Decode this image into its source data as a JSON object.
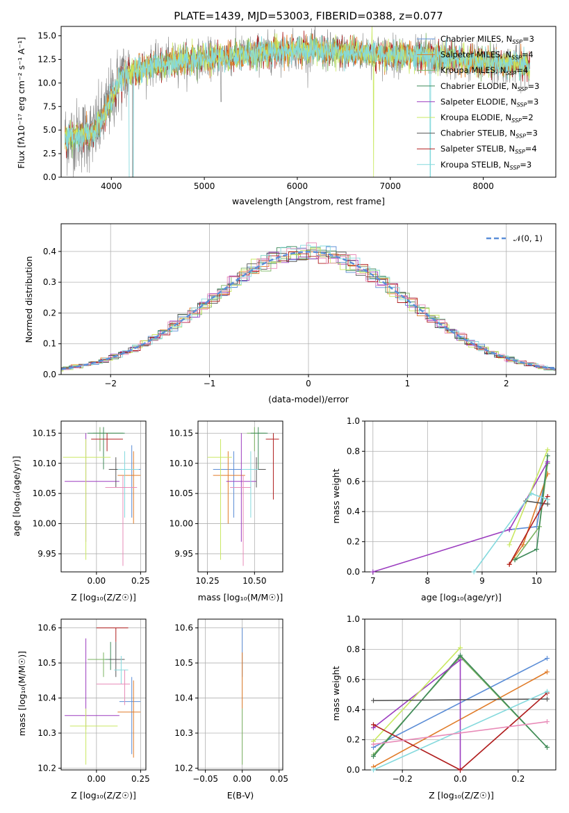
{
  "palette": {
    "series_colors": [
      "#5b8dd6",
      "#e07b28",
      "#7ab360",
      "#3f8a5a",
      "#9b3cbf",
      "#c9e860",
      "#555555",
      "#b01d1d",
      "#84d9dd"
    ],
    "extra_colors": [
      "#e88bb8",
      "#999999"
    ],
    "normal_curve": "#5a8ed8",
    "grid": "#b0b0b0"
  },
  "chart_data": [
    {
      "type": "line",
      "title": "PLATE=1439, MJD=53003, FIBERID=0388, z=0.077",
      "xlabel": "wavelength [Angstrom, rest frame]",
      "ylabel": "Flux [f$_\\lambda$10$^{-17}$ erg cm$^{-2}$ s$^{-1}$ A$^{-1}$]",
      "ylabel_display": "Flux [fλ10⁻¹⁷ erg cm⁻² s⁻¹ A⁻¹]",
      "xlim": [
        3460,
        8780
      ],
      "ylim": [
        0,
        16
      ],
      "xticks": [
        4000,
        5000,
        6000,
        7000,
        8000
      ],
      "xtick_labels": [
        "4000",
        "5000",
        "6000",
        "7000",
        "8000"
      ],
      "yticks": [
        0,
        2.5,
        5,
        7.5,
        10,
        12.5,
        15
      ],
      "ytick_labels": [
        "0.0",
        "2.5",
        "5.0",
        "7.5",
        "10.0",
        "12.5",
        "15.0"
      ],
      "grid": false,
      "legend_position": "top-right",
      "series": [
        {
          "name": "Chabrier MILES, N$_{SSP}$=3",
          "label": "Chabrier MILES, N",
          "sub": "SSP",
          "suffix": "=3"
        },
        {
          "name": "Salpeter MILES, N$_{SSP}$=4",
          "label": "Salpeter MILES, N",
          "sub": "SSP",
          "suffix": "=4"
        },
        {
          "name": "Kroupa MILES, N$_{SSP}$=4",
          "label": "Kroupa MILES, N",
          "sub": "SSP",
          "suffix": "=4"
        },
        {
          "name": "Chabrier ELODIE, N$_{SSP}$=3",
          "label": "Chabrier ELODIE, N",
          "sub": "SSP",
          "suffix": "=3"
        },
        {
          "name": "Salpeter ELODIE, N$_{SSP}$=3",
          "label": "Salpeter ELODIE, N",
          "sub": "SSP",
          "suffix": "=3"
        },
        {
          "name": "Kroupa ELODIE, N$_{SSP}$=2",
          "label": "Kroupa ELODIE, N",
          "sub": "SSP",
          "suffix": "=2"
        },
        {
          "name": "Chabrier STELIB, N$_{SSP}$=3",
          "label": "Chabrier STELIB, N",
          "sub": "SSP",
          "suffix": "=3"
        },
        {
          "name": "Salpeter STELIB, N$_{SSP}$=4",
          "label": "Salpeter STELIB, N",
          "sub": "SSP",
          "suffix": "=4"
        },
        {
          "name": "Kroupa STELIB, N$_{SSP}$=3",
          "label": "Kroupa STELIB, N",
          "sub": "SSP",
          "suffix": "=3"
        }
      ],
      "spectrum_shape": {
        "continuum": [
          [
            3500,
            4.2
          ],
          [
            3800,
            4.6
          ],
          [
            3900,
            6.0
          ],
          [
            4000,
            8.5
          ],
          [
            4100,
            10.5
          ],
          [
            4300,
            11.5
          ],
          [
            4500,
            12.0
          ],
          [
            4800,
            12.4
          ],
          [
            5000,
            12.6
          ],
          [
            5300,
            12.8
          ],
          [
            5600,
            13.2
          ],
          [
            6000,
            13.5
          ],
          [
            6500,
            13.3
          ],
          [
            7000,
            13.0
          ],
          [
            7400,
            12.8
          ],
          [
            7800,
            12.4
          ],
          [
            8200,
            12.0
          ],
          [
            8500,
            11.8
          ]
        ],
        "noise_data": 2.2,
        "noise_model": 0.7
      }
    },
    {
      "type": "line",
      "xlabel": "(data-model)/error",
      "ylabel": "Normed distribution",
      "xlim": [
        -2.5,
        2.5
      ],
      "ylim": [
        0,
        0.49
      ],
      "xticks": [
        -2,
        -1,
        0,
        1,
        2
      ],
      "xtick_labels": [
        "−2",
        "−1",
        "0",
        "1",
        "2"
      ],
      "yticks": [
        0,
        0.1,
        0.2,
        0.3,
        0.4
      ],
      "ytick_labels": [
        "0.0",
        "0.1",
        "0.2",
        "0.3",
        "0.4"
      ],
      "grid": true,
      "legend_position": "top-right",
      "normal_label": "𝒩(0, 1)",
      "bin_width": 0.1,
      "notes": "step histograms of residuals for each of 9 models approximately follow the standard normal"
    },
    {
      "type": "scatter",
      "xlabel": "Z [log₁₀(Z/Z☉)]",
      "ylabel": "age  [log₁₀(age/yr)]",
      "xlim": [
        -0.2,
        0.28
      ],
      "ylim": [
        9.92,
        10.17
      ],
      "xticks": [
        0.0,
        0.25
      ],
      "xtick_labels": [
        "0.00",
        "0.25"
      ],
      "yticks": [
        9.95,
        10.0,
        10.05,
        10.1,
        10.15
      ],
      "ytick_labels": [
        "9.95",
        "10.00",
        "10.05",
        "10.10",
        "10.15"
      ],
      "grid": true,
      "points": [
        {
          "x": 0.2,
          "y": 10.09,
          "xe": [
            0.16,
            0.25
          ],
          "ye": [
            10.01,
            10.13
          ]
        },
        {
          "x": 0.21,
          "y": 10.08,
          "xe": [
            0.12,
            0.25
          ],
          "ye": [
            10.0,
            10.12
          ]
        },
        {
          "x": 0.02,
          "y": 10.15,
          "xe": [
            -0.02,
            0.15
          ],
          "ye": [
            10.12,
            10.16
          ]
        },
        {
          "x": 0.04,
          "y": 10.15,
          "xe": [
            -0.05,
            0.16
          ],
          "ye": [
            10.09,
            10.16
          ]
        },
        {
          "x": -0.06,
          "y": 10.07,
          "xe": [
            -0.18,
            0.13
          ],
          "ye": [
            9.97,
            10.15
          ]
        },
        {
          "x": -0.06,
          "y": 10.11,
          "xe": [
            -0.19,
            0.08
          ],
          "ye": [
            9.94,
            10.14
          ]
        },
        {
          "x": 0.11,
          "y": 10.09,
          "xe": [
            0.07,
            0.16
          ],
          "ye": [
            10.06,
            10.11
          ]
        },
        {
          "x": 0.06,
          "y": 10.14,
          "xe": [
            -0.03,
            0.15
          ],
          "ye": [
            10.12,
            10.15
          ]
        },
        {
          "x": 0.16,
          "y": 10.09,
          "xe": [
            0.12,
            0.24
          ],
          "ye": [
            10.01,
            10.12
          ]
        },
        {
          "x": 0.15,
          "y": 10.06,
          "xe": [
            0.05,
            0.23
          ],
          "ye": [
            9.93,
            10.08
          ]
        }
      ]
    },
    {
      "type": "scatter",
      "xlabel": "mass [log₁₀(M/M☉)]",
      "ylabel": "",
      "xlim": [
        10.2,
        10.65
      ],
      "ylim": [
        9.92,
        10.17
      ],
      "xticks": [
        10.25,
        10.5
      ],
      "xtick_labels": [
        "10.25",
        "10.50"
      ],
      "yticks": [
        9.95,
        10.0,
        10.05,
        10.1,
        10.15
      ],
      "ytick_labels": [
        "9.95",
        "10.00",
        "10.05",
        "10.10",
        "10.15"
      ],
      "grid": true,
      "points": [
        {
          "x": 10.39,
          "y": 10.09,
          "xe": [
            10.28,
            10.46
          ],
          "ye": [
            10.01,
            10.12
          ]
        },
        {
          "x": 10.36,
          "y": 10.08,
          "xe": [
            10.28,
            10.45
          ],
          "ye": [
            10.0,
            10.12
          ]
        },
        {
          "x": 10.5,
          "y": 10.15,
          "xe": [
            10.46,
            10.56
          ],
          "ye": [
            10.12,
            10.16
          ]
        },
        {
          "x": 10.52,
          "y": 10.15,
          "xe": [
            10.48,
            10.57
          ],
          "ye": [
            10.09,
            10.16
          ]
        },
        {
          "x": 10.43,
          "y": 10.07,
          "xe": [
            10.35,
            10.51
          ],
          "ye": [
            9.97,
            10.15
          ]
        },
        {
          "x": 10.32,
          "y": 10.11,
          "xe": [
            10.25,
            10.38
          ],
          "ye": [
            9.94,
            10.14
          ]
        },
        {
          "x": 10.51,
          "y": 10.09,
          "xe": [
            10.46,
            10.56
          ],
          "ye": [
            10.06,
            10.11
          ]
        },
        {
          "x": 10.6,
          "y": 10.14,
          "xe": [
            10.56,
            10.63
          ],
          "ye": [
            10.04,
            10.15
          ]
        },
        {
          "x": 10.48,
          "y": 10.09,
          "xe": [
            10.43,
            10.52
          ],
          "ye": [
            10.01,
            10.12
          ]
        },
        {
          "x": 10.44,
          "y": 10.06,
          "xe": [
            10.37,
            10.48
          ],
          "ye": [
            9.93,
            10.08
          ]
        }
      ]
    },
    {
      "type": "line",
      "xlabel": "age  [log₁₀(age/yr)]",
      "ylabel": "mass weight",
      "xlim": [
        6.85,
        10.35
      ],
      "ylim": [
        0,
        1.0
      ],
      "xticks": [
        7,
        8,
        9,
        10
      ],
      "xtick_labels": [
        "7",
        "8",
        "9",
        "10"
      ],
      "yticks": [
        0,
        0.2,
        0.4,
        0.6,
        0.8,
        1.0
      ],
      "ytick_labels": [
        "0.0",
        "0.2",
        "0.4",
        "0.6",
        "0.8",
        "1.0"
      ],
      "grid": true,
      "series": [
        {
          "values": [
            [
              9.5,
              0.28
            ],
            [
              10.0,
              0.3
            ],
            [
              10.2,
              0.72
            ]
          ]
        },
        {
          "values": [
            [
              9.5,
              0.05
            ],
            [
              9.75,
              0.18
            ],
            [
              10.2,
              0.65
            ]
          ]
        },
        {
          "values": [
            [
              9.6,
              0.08
            ],
            [
              10.05,
              0.3
            ],
            [
              10.2,
              0.72
            ]
          ]
        },
        {
          "values": [
            [
              9.6,
              0.08
            ],
            [
              10.0,
              0.15
            ],
            [
              10.2,
              0.77
            ]
          ]
        },
        {
          "values": [
            [
              7.0,
              0.0
            ],
            [
              9.5,
              0.28
            ],
            [
              10.2,
              0.73
            ]
          ]
        },
        {
          "values": [
            [
              9.5,
              0.18
            ],
            [
              10.2,
              0.81
            ]
          ]
        },
        {
          "values": [
            [
              9.8,
              0.47
            ],
            [
              10.2,
              0.45
            ]
          ]
        },
        {
          "values": [
            [
              9.5,
              0.05
            ],
            [
              10.2,
              0.5
            ]
          ]
        },
        {
          "values": [
            [
              8.85,
              0.0
            ],
            [
              9.9,
              0.52
            ],
            [
              10.2,
              0.48
            ]
          ]
        }
      ]
    },
    {
      "type": "scatter",
      "xlabel": "Z [log₁₀(Z/Z☉)]",
      "ylabel": "mass [log₁₀(M/M☉)]",
      "xlim": [
        -0.2,
        0.28
      ],
      "ylim": [
        10.195,
        10.625
      ],
      "xticks": [
        0.0,
        0.25
      ],
      "xtick_labels": [
        "0.00",
        "0.25"
      ],
      "yticks": [
        10.2,
        10.3,
        10.4,
        10.5,
        10.6
      ],
      "ytick_labels": [
        "10.2",
        "10.3",
        "10.4",
        "10.5",
        "10.6"
      ],
      "grid": true,
      "points": [
        {
          "x": 0.2,
          "y": 10.39,
          "xe": [
            0.13,
            0.25
          ],
          "ye": [
            10.24,
            10.46
          ]
        },
        {
          "x": 0.21,
          "y": 10.36,
          "xe": [
            0.12,
            0.25
          ],
          "ye": [
            10.23,
            10.45
          ]
        },
        {
          "x": 0.04,
          "y": 10.51,
          "xe": [
            -0.05,
            0.1
          ],
          "ye": [
            10.46,
            10.53
          ]
        },
        {
          "x": 0.08,
          "y": 10.51,
          "xe": [
            0.05,
            0.12
          ],
          "ye": [
            10.48,
            10.56
          ]
        },
        {
          "x": -0.06,
          "y": 10.35,
          "xe": [
            -0.18,
            0.13
          ],
          "ye": [
            10.31,
            10.57
          ]
        },
        {
          "x": -0.06,
          "y": 10.32,
          "xe": [
            -0.15,
            0.12
          ],
          "ye": [
            10.21,
            10.37
          ]
        },
        {
          "x": 0.11,
          "y": 10.51,
          "xe": [
            0.07,
            0.16
          ],
          "ye": [
            10.46,
            10.56
          ]
        },
        {
          "x": 0.11,
          "y": 10.6,
          "xe": [
            0.0,
            0.18
          ],
          "ye": [
            10.56,
            10.6
          ]
        },
        {
          "x": 0.14,
          "y": 10.48,
          "xe": [
            0.1,
            0.18
          ],
          "ye": [
            10.44,
            10.52
          ]
        },
        {
          "x": 0.16,
          "y": 10.44,
          "xe": [
            0.0,
            0.19
          ],
          "ye": [
            10.38,
            10.48
          ]
        }
      ]
    },
    {
      "type": "scatter",
      "xlabel": "E(B-V)",
      "ylabel": "",
      "xlim": [
        -0.06,
        0.055
      ],
      "ylim": [
        10.195,
        10.625
      ],
      "xticks": [
        -0.05,
        0.0,
        0.05
      ],
      "xtick_labels": [
        "−0.05",
        "0.00",
        "0.05"
      ],
      "yticks": [
        10.2,
        10.3,
        10.4,
        10.5,
        10.6
      ],
      "ytick_labels": [
        "10.2",
        "10.3",
        "10.4",
        "10.5",
        "10.6"
      ],
      "grid": true,
      "points": [
        {
          "x": 0.0,
          "y": 10.52,
          "xe": [
            0,
            0
          ],
          "ye": [
            10.46,
            10.6
          ]
        },
        {
          "x": 0.0,
          "y": 10.45,
          "xe": [
            0,
            0
          ],
          "ye": [
            10.37,
            10.53
          ]
        },
        {
          "x": 0.0,
          "y": 10.3,
          "xe": [
            0,
            0
          ],
          "ye": [
            10.21,
            10.37
          ]
        }
      ]
    },
    {
      "type": "line",
      "xlabel": "Z [log₁₀(Z/Z☉)]",
      "ylabel": "mass weight",
      "xlim": [
        -0.33,
        0.33
      ],
      "ylim": [
        0,
        1.0
      ],
      "xticks": [
        -0.2,
        0.0,
        0.2
      ],
      "xtick_labels": [
        "−0.2",
        "0.0",
        "0.2"
      ],
      "yticks": [
        0,
        0.2,
        0.4,
        0.6,
        0.8,
        1.0
      ],
      "ytick_labels": [
        "0.0",
        "0.2",
        "0.4",
        "0.6",
        "0.8",
        "1.0"
      ],
      "grid": true,
      "series": [
        {
          "values": [
            [
              -0.3,
              0.15
            ],
            [
              0.3,
              0.74
            ]
          ]
        },
        {
          "values": [
            [
              -0.3,
              0.02
            ],
            [
              0.3,
              0.65
            ]
          ]
        },
        {
          "values": [
            [
              -0.3,
              0.1
            ],
            [
              0.0,
              0.75
            ],
            [
              0.3,
              0.15
            ]
          ]
        },
        {
          "values": [
            [
              -0.3,
              0.09
            ],
            [
              0.0,
              0.76
            ],
            [
              0.3,
              0.15
            ]
          ]
        },
        {
          "values": [
            [
              -0.3,
              0.28
            ],
            [
              0.0,
              0.73
            ],
            [
              0.0,
              0.0
            ]
          ]
        },
        {
          "values": [
            [
              -0.3,
              0.19
            ],
            [
              0.0,
              0.81
            ]
          ]
        },
        {
          "values": [
            [
              -0.3,
              0.46
            ],
            [
              0.3,
              0.47
            ]
          ]
        },
        {
          "values": [
            [
              -0.3,
              0.3
            ],
            [
              0.0,
              0.0
            ],
            [
              0.3,
              0.51
            ]
          ]
        },
        {
          "values": [
            [
              -0.3,
              0.0
            ],
            [
              0.3,
              0.52
            ]
          ]
        },
        {
          "values": [
            [
              -0.3,
              0.17
            ],
            [
              0.3,
              0.32
            ]
          ]
        }
      ]
    }
  ]
}
